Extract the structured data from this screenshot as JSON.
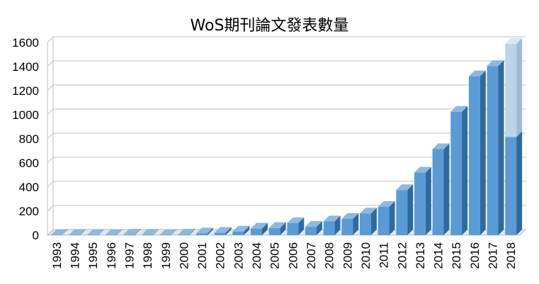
{
  "chart_data": {
    "type": "bar",
    "title": "WoS期刊論文發表數量",
    "xlabel": "",
    "ylabel": "",
    "ylim": [
      0,
      1600
    ],
    "yticks": [
      0,
      200,
      400,
      600,
      800,
      1000,
      1200,
      1400,
      1600
    ],
    "grid": true,
    "style": "3d",
    "categories": [
      "1993",
      "1994",
      "1995",
      "1996",
      "1997",
      "1998",
      "1999",
      "2000",
      "2001",
      "2002",
      "2003",
      "2004",
      "2005",
      "2006",
      "2007",
      "2008",
      "2009",
      "2010",
      "2011",
      "2012",
      "2013",
      "2014",
      "2015",
      "2016",
      "2017",
      "2018"
    ],
    "values": [
      2,
      3,
      2,
      3,
      5,
      4,
      3,
      5,
      15,
      20,
      30,
      55,
      60,
      100,
      70,
      115,
      135,
      180,
      235,
      375,
      520,
      715,
      1025,
      1320,
      1405,
      815
    ],
    "projected": {
      "category": "2018",
      "value": 1590
    },
    "colors": {
      "bar_front": "#5a9bd5",
      "bar_side": "#2f6a9f",
      "bar_top": "#8db8e3",
      "projected_front": "#bcd4ea",
      "projected_side": "#9cbbd9",
      "projected_top": "#d7e6f4"
    }
  }
}
